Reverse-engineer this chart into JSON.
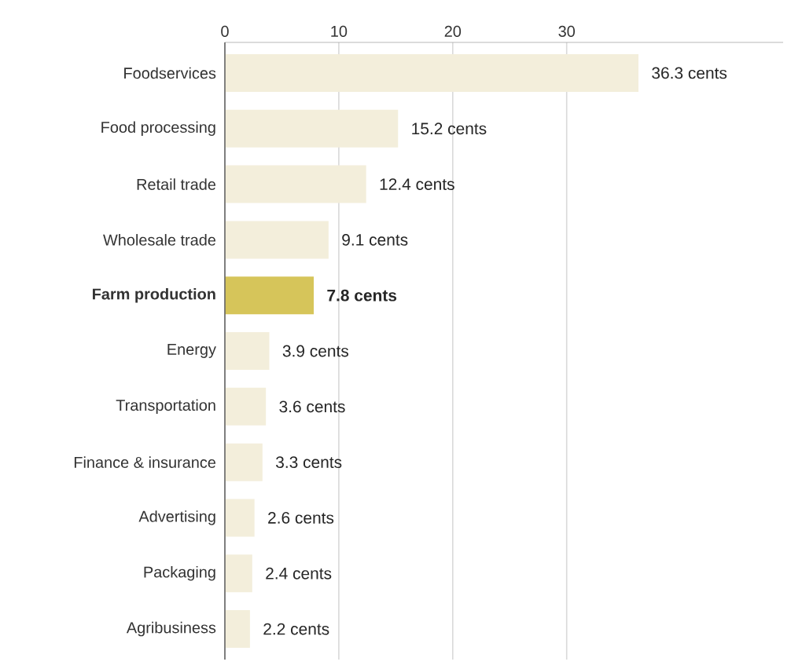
{
  "chart_data": {
    "type": "bar",
    "orientation": "horizontal",
    "categories": [
      "Foodservices",
      "Food processing",
      "Retail trade",
      "Wholesale trade",
      "**Farm production**",
      "Energy",
      "Transportation",
      "Finance & insurance",
      "Advertising",
      "Packaging",
      "Agribusiness"
    ],
    "values": [
      36.3,
      15.2,
      12.4,
      9.1,
      7.8,
      3.9,
      3.6,
      3.3,
      2.6,
      2.4,
      2.2
    ],
    "colors": [
      "#f3eedb",
      "#f3eedb",
      "#f3eedb",
      "#f3eedb",
      "#d6c55a",
      "#f3eedb",
      "#f3eedb",
      "#f3eedb",
      "#f3eedb",
      "#f3eedb",
      "#f3eedb"
    ],
    "value_labels": [
      "36.3 cents",
      "15.2 cents",
      "12.4 cents",
      "9.1 cents",
      "**7.8 cents**",
      "3.9 cents",
      "3.6 cents",
      "3.3 cents",
      "2.6 cents",
      "2.4 cents",
      "2.2 cents"
    ],
    "xlim": [
      0,
      49
    ],
    "xticks": [
      0,
      10,
      20,
      30
    ],
    "grid": "x"
  }
}
